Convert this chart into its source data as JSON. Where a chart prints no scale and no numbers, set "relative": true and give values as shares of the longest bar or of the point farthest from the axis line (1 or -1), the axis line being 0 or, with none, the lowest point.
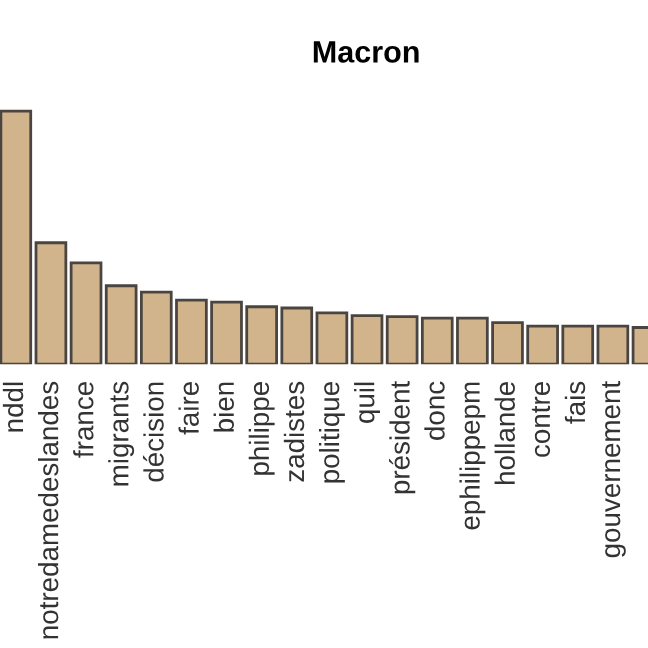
{
  "chart_data": {
    "type": "bar",
    "title": "Macron",
    "relative": true,
    "color": "#d2b48c",
    "categories": [
      "nddl",
      "notredamedeslandes",
      "france",
      "migrants",
      "décision",
      "faire",
      "bien",
      "philippe",
      "zadistes",
      "politique",
      "quil",
      "président",
      "donc",
      "ephilippepm",
      "hollande",
      "contre",
      "fais",
      "gouvernement",
      null
    ],
    "values": [
      1,
      0.48,
      0.4,
      0.31,
      0.285,
      0.253,
      0.245,
      0.227,
      0.222,
      0.203,
      0.192,
      0.188,
      0.182,
      0.182,
      0.164,
      0.15,
      0.15,
      0.15,
      0.145
    ]
  }
}
